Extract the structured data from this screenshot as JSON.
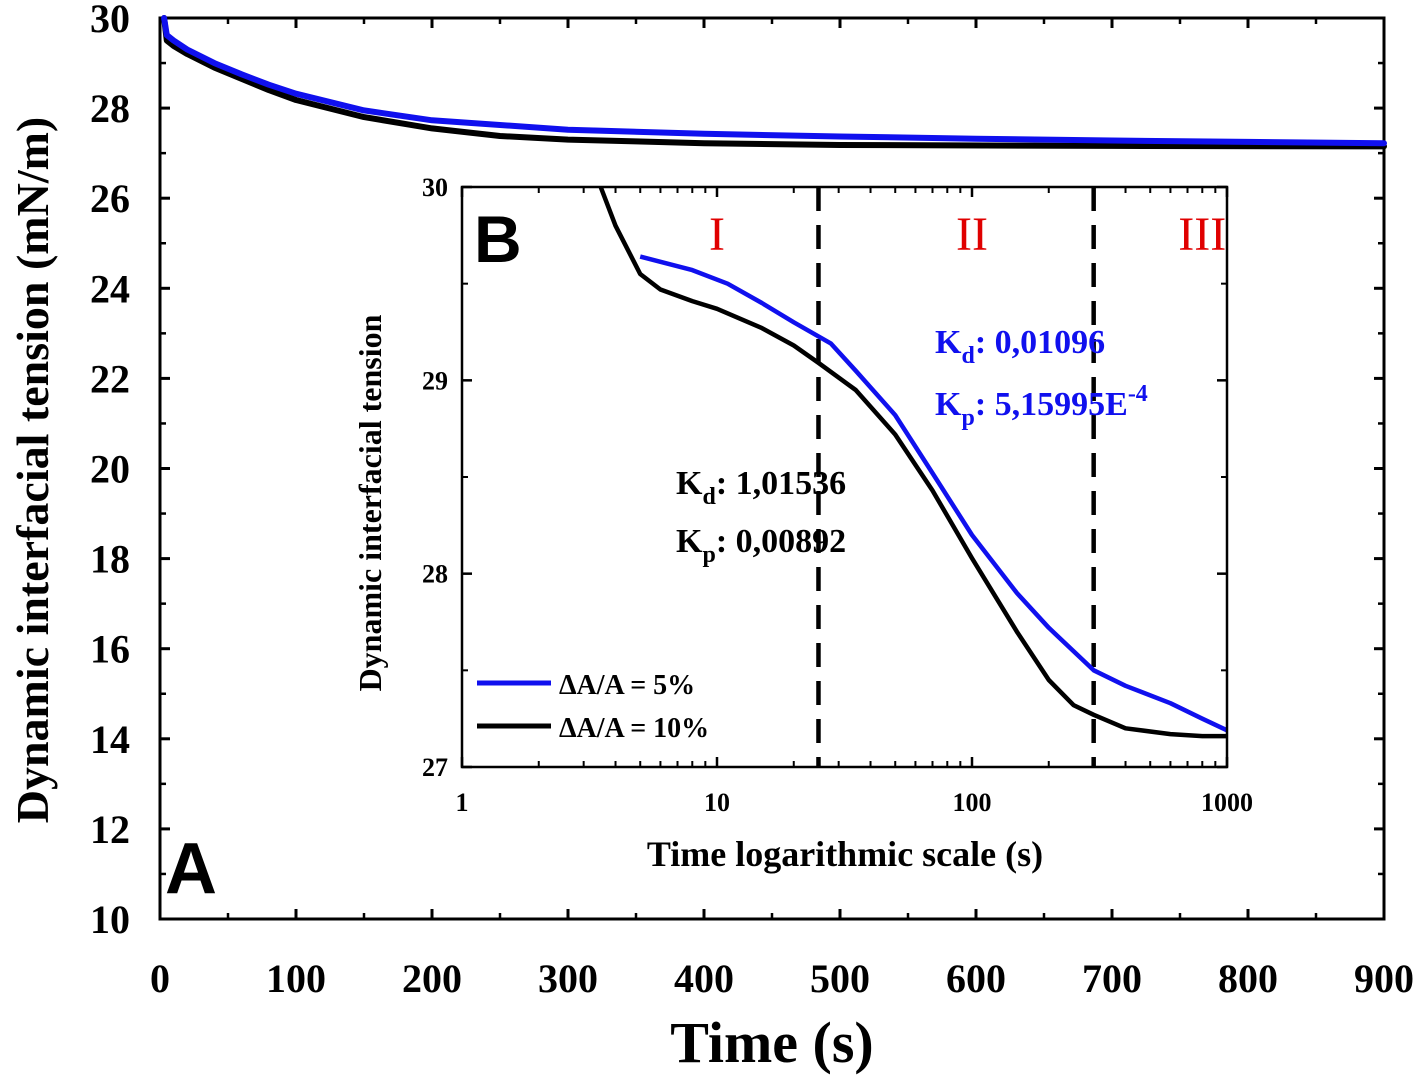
{
  "chart_data": [
    {
      "id": "A",
      "type": "line",
      "panel_label": "A",
      "xlabel": "Time (s)",
      "ylabel": "Dynamic interfacial tension (mN/m)",
      "xlim": [
        0,
        900
      ],
      "ylim": [
        10,
        30
      ],
      "x_ticks": [
        0,
        100,
        200,
        300,
        400,
        500,
        600,
        700,
        800,
        900
      ],
      "y_ticks": [
        10,
        12,
        14,
        16,
        18,
        20,
        22,
        24,
        26,
        28,
        30
      ],
      "series": [
        {
          "color": "#1010ee",
          "points": [
            [
              3,
              30.0
            ],
            [
              5,
              29.62
            ],
            [
              10,
              29.5
            ],
            [
              20,
              29.3
            ],
            [
              40,
              29.0
            ],
            [
              60,
              28.75
            ],
            [
              80,
              28.52
            ],
            [
              100,
              28.32
            ],
            [
              150,
              27.95
            ],
            [
              200,
              27.73
            ],
            [
              300,
              27.52
            ],
            [
              400,
              27.43
            ],
            [
              500,
              27.37
            ],
            [
              600,
              27.32
            ],
            [
              700,
              27.28
            ],
            [
              800,
              27.25
            ],
            [
              900,
              27.22
            ]
          ]
        },
        {
          "color": "#000000",
          "points": [
            [
              3,
              30.0
            ],
            [
              5,
              29.5
            ],
            [
              10,
              29.38
            ],
            [
              20,
              29.2
            ],
            [
              40,
              28.9
            ],
            [
              60,
              28.65
            ],
            [
              80,
              28.4
            ],
            [
              100,
              28.18
            ],
            [
              150,
              27.8
            ],
            [
              200,
              27.55
            ],
            [
              250,
              27.38
            ],
            [
              300,
              27.3
            ],
            [
              350,
              27.26
            ],
            [
              400,
              27.22
            ],
            [
              500,
              27.18
            ],
            [
              700,
              27.16
            ],
            [
              900,
              27.15
            ]
          ]
        }
      ]
    },
    {
      "id": "B",
      "type": "line",
      "panel_label": "B",
      "xlabel": "Time logarithmic scale (s)",
      "ylabel": "Dynamic interfacial tension",
      "x_scale": "log",
      "xlim": [
        1,
        1000
      ],
      "ylim": [
        27,
        30
      ],
      "x_ticks": [
        1,
        10,
        100,
        1000
      ],
      "x_tick_labels": [
        "1",
        "10",
        "100",
        "1000"
      ],
      "y_ticks": [
        27,
        28,
        29,
        30
      ],
      "vlines": [
        25,
        300
      ],
      "regions": [
        "I",
        "II",
        "III"
      ],
      "region_x": [
        10,
        100,
        800
      ],
      "region_color": "#e00000",
      "legend_position": "bottom-left",
      "series": [
        {
          "name": "ΔA/A = 5%",
          "color": "#1010ee",
          "points": [
            [
              5,
              29.64
            ],
            [
              8,
              29.57
            ],
            [
              11,
              29.5
            ],
            [
              15,
              29.4
            ],
            [
              20,
              29.3
            ],
            [
              28,
              29.19
            ],
            [
              35,
              29.05
            ],
            [
              50,
              28.82
            ],
            [
              70,
              28.52
            ],
            [
              100,
              28.2
            ],
            [
              150,
              27.9
            ],
            [
              200,
              27.72
            ],
            [
              300,
              27.5
            ],
            [
              400,
              27.42
            ],
            [
              600,
              27.33
            ],
            [
              800,
              27.25
            ],
            [
              1000,
              27.19
            ]
          ]
        },
        {
          "name": "ΔA/A = 10%",
          "color": "#000000",
          "points": [
            [
              3.5,
              30.0
            ],
            [
              4,
              29.8
            ],
            [
              5,
              29.55
            ],
            [
              6,
              29.47
            ],
            [
              8,
              29.41
            ],
            [
              10,
              29.37
            ],
            [
              15,
              29.27
            ],
            [
              20,
              29.18
            ],
            [
              25,
              29.09
            ],
            [
              35,
              28.95
            ],
            [
              50,
              28.72
            ],
            [
              70,
              28.43
            ],
            [
              100,
              28.08
            ],
            [
              150,
              27.7
            ],
            [
              200,
              27.45
            ],
            [
              250,
              27.32
            ],
            [
              300,
              27.27
            ],
            [
              400,
              27.2
            ],
            [
              600,
              27.17
            ],
            [
              800,
              27.16
            ],
            [
              1000,
              27.16
            ]
          ]
        }
      ],
      "annotations": {
        "blue_kd_label": "K",
        "blue_kd_sub": "d",
        "blue_kd_value": ": 0,01096",
        "blue_kp_label": "K",
        "blue_kp_sub": "p",
        "blue_kp_value": ": 5,15995E",
        "blue_kp_sup": "-4",
        "black_kd_label": "K",
        "black_kd_sub": "d",
        "black_kd_value": ": 1,01536",
        "black_kp_label": "K",
        "black_kp_sub": "p",
        "black_kp_value": ": 0,00892"
      }
    }
  ]
}
